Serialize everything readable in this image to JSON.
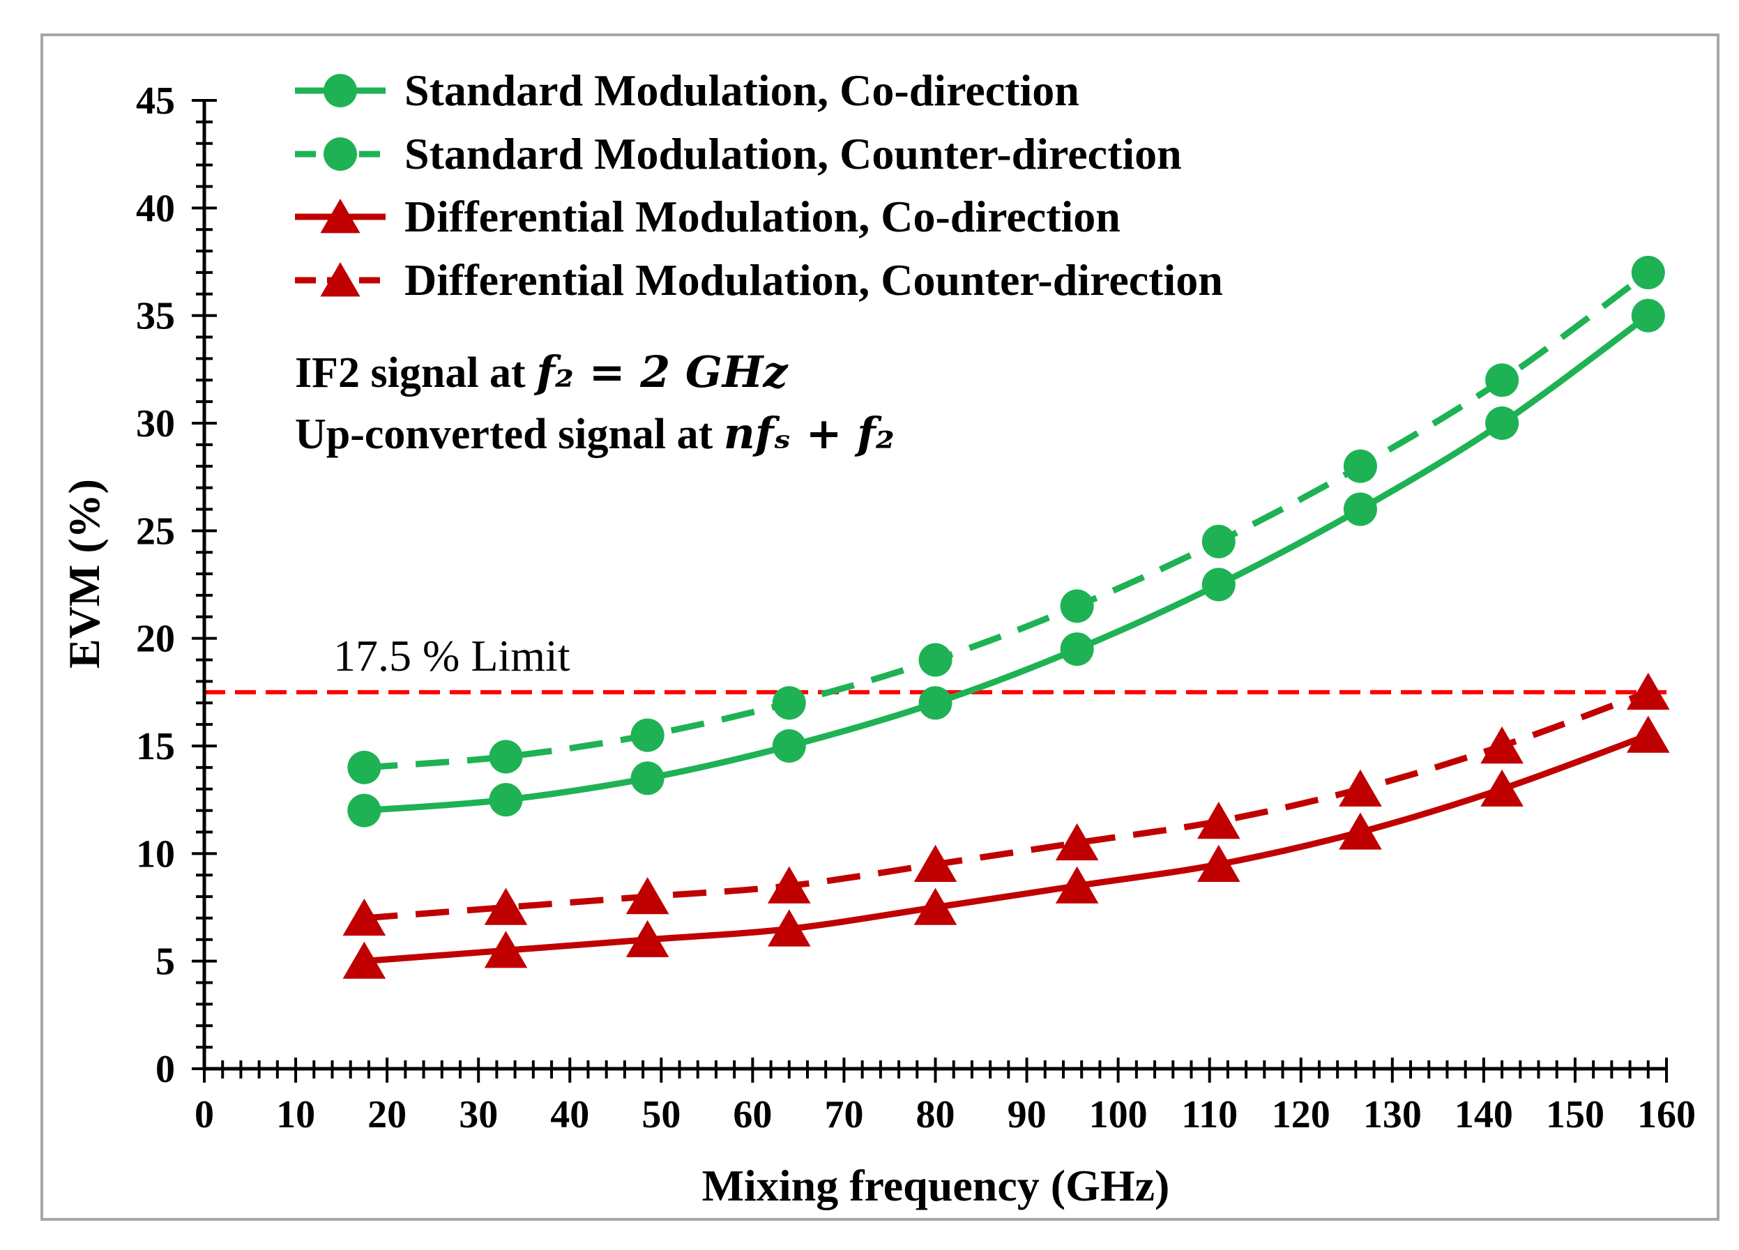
{
  "chart_data": {
    "type": "line",
    "xlabel": "Mixing frequency (GHz)",
    "ylabel": "EVM (%)",
    "xlim": [
      0,
      160
    ],
    "ylim": [
      0,
      45
    ],
    "x_ticks": [
      "0",
      "10",
      "20",
      "30",
      "40",
      "50",
      "60",
      "70",
      "80",
      "90",
      "100",
      "110",
      "120",
      "130",
      "140",
      "150",
      "160"
    ],
    "y_ticks": [
      "0",
      "5",
      "10",
      "15",
      "20",
      "25",
      "30",
      "35",
      "40",
      "45"
    ],
    "x": [
      17.5,
      33,
      48.5,
      64,
      80,
      95.5,
      111,
      126.5,
      142,
      158
    ],
    "series": [
      {
        "name": "Standard Modulation, Co-direction",
        "color": "#1eb254",
        "dash": "solid",
        "marker": "circle",
        "values": [
          12,
          12.5,
          13.5,
          15,
          17,
          19.5,
          22.5,
          26,
          30,
          35
        ]
      },
      {
        "name": "Standard Modulation, Counter-direction",
        "color": "#1eb254",
        "dash": "dashed",
        "marker": "circle",
        "values": [
          14,
          14.5,
          15.5,
          17,
          19,
          21.5,
          24.5,
          28,
          32,
          37
        ]
      },
      {
        "name": "Differential Modulation, Co-direction",
        "color": "#c00000",
        "dash": "solid",
        "marker": "triangle",
        "values": [
          5,
          5.5,
          6,
          6.5,
          7.5,
          8.5,
          9.5,
          11,
          13,
          15.5
        ]
      },
      {
        "name": "Differential Modulation, Counter-direction",
        "color": "#c00000",
        "dash": "dashed",
        "marker": "triangle",
        "values": [
          7,
          7.5,
          8,
          8.5,
          9.5,
          10.5,
          11.5,
          13,
          15,
          17.5
        ]
      }
    ],
    "reference_line": {
      "value": 17.5,
      "label": "17.5 % Limit",
      "color": "#ff0000"
    },
    "annotations": {
      "line1_text": "IF2 signal at ",
      "line1_math": "f₂ = 2 GHz",
      "line2_text": "Up-converted signal at ",
      "line2_math": "nfₛ + f₂"
    },
    "legend_position": "top-left",
    "grid": false
  }
}
